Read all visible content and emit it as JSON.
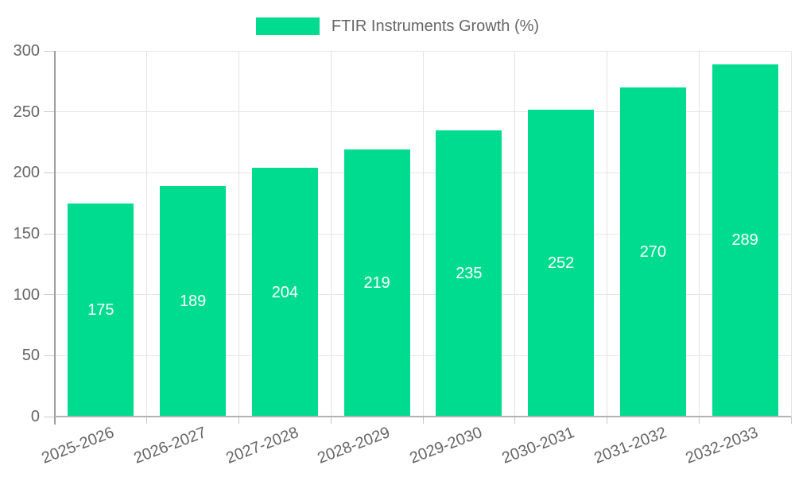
{
  "legend": {
    "label": "FTIR Instruments Growth (%)",
    "swatch_color": "#00dc8f"
  },
  "chart_data": {
    "type": "bar",
    "title": "",
    "xlabel": "",
    "ylabel": "",
    "series_name": "FTIR Instruments Growth (%)",
    "categories": [
      "2025-2026",
      "2026-2027",
      "2027-2028",
      "2028-2029",
      "2029-2030",
      "2030-2031",
      "2031-2032",
      "2032-2033"
    ],
    "values": [
      175,
      189,
      204,
      219,
      235,
      252,
      270,
      289
    ],
    "ylim": [
      0,
      300
    ],
    "yticks": [
      0,
      50,
      100,
      150,
      200,
      250,
      300
    ],
    "grid": true,
    "legend_position": "top-center",
    "bar_color": "#00dc8f",
    "value_label_color": "#ffffff",
    "axis_text_color": "#666666",
    "value_labels_shown": true,
    "value_label_position": "center-of-bar"
  }
}
